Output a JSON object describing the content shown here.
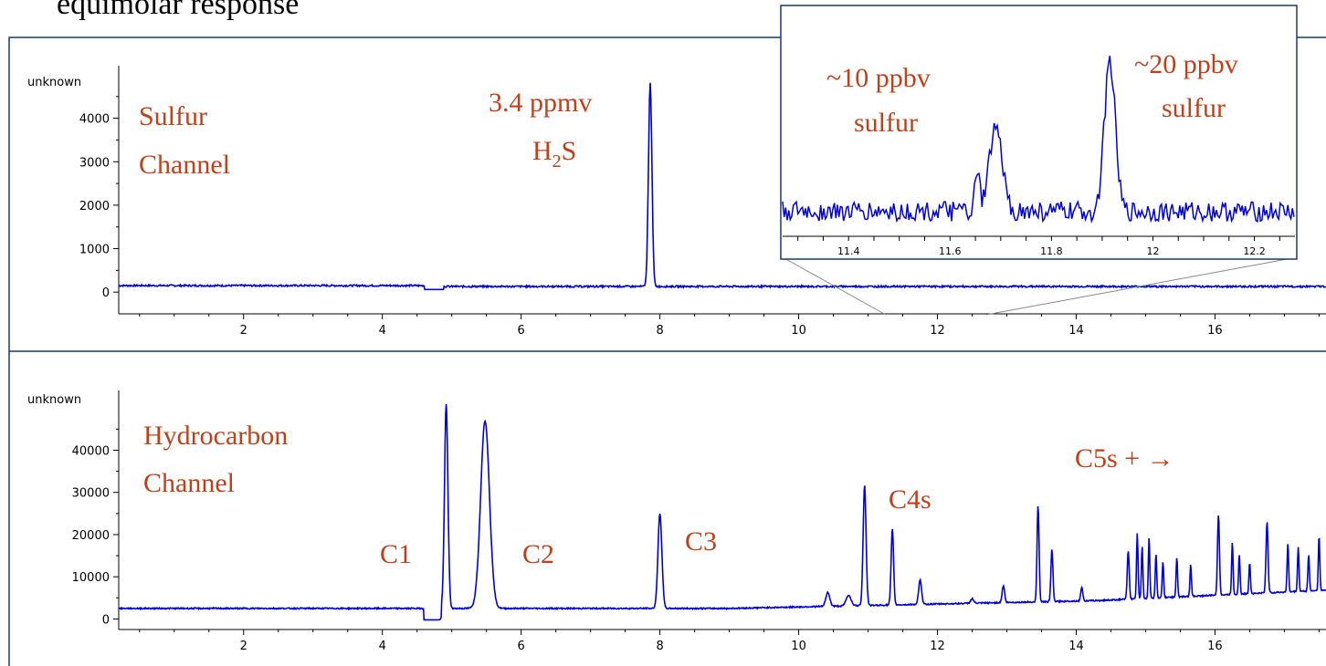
{
  "header": {
    "title_fragment": "equimolar response"
  },
  "chart_data": [
    {
      "type": "line",
      "name_label": [
        "Sulfur",
        "Channel"
      ],
      "ylabel": "unknown",
      "xlim": [
        0.2,
        17.6
      ],
      "ylim": [
        -500,
        5000
      ],
      "x_ticks": [
        2,
        4,
        6,
        8,
        10,
        12,
        14,
        16
      ],
      "y_ticks": [
        0,
        1000,
        2000,
        3000,
        4000
      ],
      "baseline": 150,
      "peaks": [
        {
          "x": 4.62,
          "y": 60,
          "dip": true
        },
        {
          "x": 7.86,
          "y": 4850
        }
      ],
      "annotations": [
        {
          "text": "3.4 ppmv",
          "anchor_x": 7.3
        },
        {
          "text_main": "H",
          "sub": "2",
          "text_tail": "S"
        }
      ],
      "series_color": "#0000dd"
    },
    {
      "type": "line",
      "name_label": [
        "Hydrocarbon",
        "Channel"
      ],
      "ylabel": "unknown",
      "xlim": [
        0.2,
        17.6
      ],
      "ylim": [
        -2500,
        52000
      ],
      "x_ticks": [
        2,
        4,
        6,
        8,
        10,
        12,
        14,
        16
      ],
      "y_ticks": [
        0,
        10000,
        20000,
        30000,
        40000
      ],
      "baseline": 2500,
      "peaks": [
        {
          "x": 4.92,
          "y": 51000,
          "label": "C1"
        },
        {
          "x": 5.48,
          "y": 49000,
          "label": "C2"
        },
        {
          "x": 8.0,
          "y": 27000,
          "label": "C3"
        },
        {
          "x": 10.95,
          "y": 33000
        },
        {
          "x": 11.35,
          "y": 22500,
          "label": "C4s"
        },
        {
          "x": 13.45,
          "y": 27500
        },
        {
          "x": 16.05,
          "y": 24000
        },
        {
          "x": 16.75,
          "y": 22500
        }
      ],
      "peak_labels": [
        "C1",
        "C2",
        "C3",
        "C4s",
        "C5s + →"
      ],
      "series_color": "#0000dd"
    },
    {
      "type": "line",
      "role": "inset-zoom",
      "xlim": [
        11.27,
        12.28
      ],
      "x_ticks": [
        11.4,
        11.6,
        11.8,
        12,
        12.2
      ],
      "x_tick_labels": [
        "11.4",
        "11.6",
        "11.8",
        "12",
        "12.2"
      ],
      "peaks": [
        {
          "x": 11.69,
          "rel_height": 0.55,
          "label": "~10 ppbv sulfur"
        },
        {
          "x": 11.915,
          "rel_height": 1.0,
          "label": "~20 ppbv sulfur"
        }
      ],
      "annotations": [
        {
          "lines": [
            "~10 ppbv",
            "sulfur"
          ]
        },
        {
          "lines": [
            "~20 ppbv",
            "sulfur"
          ]
        }
      ]
    }
  ]
}
